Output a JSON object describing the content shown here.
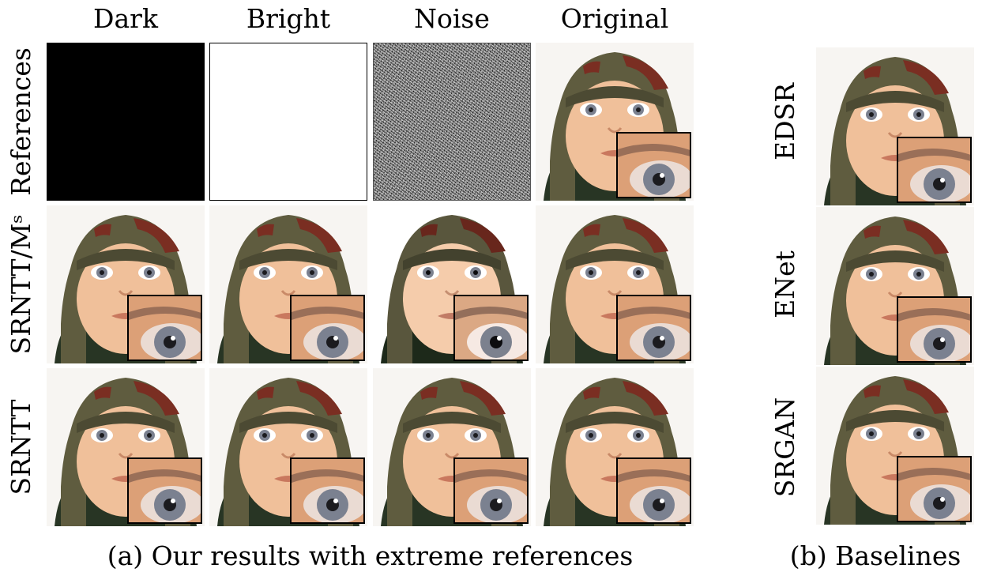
{
  "figure_a": {
    "columns": [
      "Dark",
      "Bright",
      "Noise",
      "Original"
    ],
    "rows": [
      "References",
      "SRNTT/Mˢ",
      "SRNTT"
    ],
    "caption": "(a) Our results with extreme references"
  },
  "figure_b": {
    "rows": [
      "EDSR",
      "ENet",
      "SRGAN"
    ],
    "caption": "(b) Baselines"
  },
  "colors": {
    "skin": "#f0c09a",
    "hat": "#5f5c3f",
    "hat_red": "#7a2e22",
    "sweater": "#283524",
    "iris": "#7b8190"
  }
}
